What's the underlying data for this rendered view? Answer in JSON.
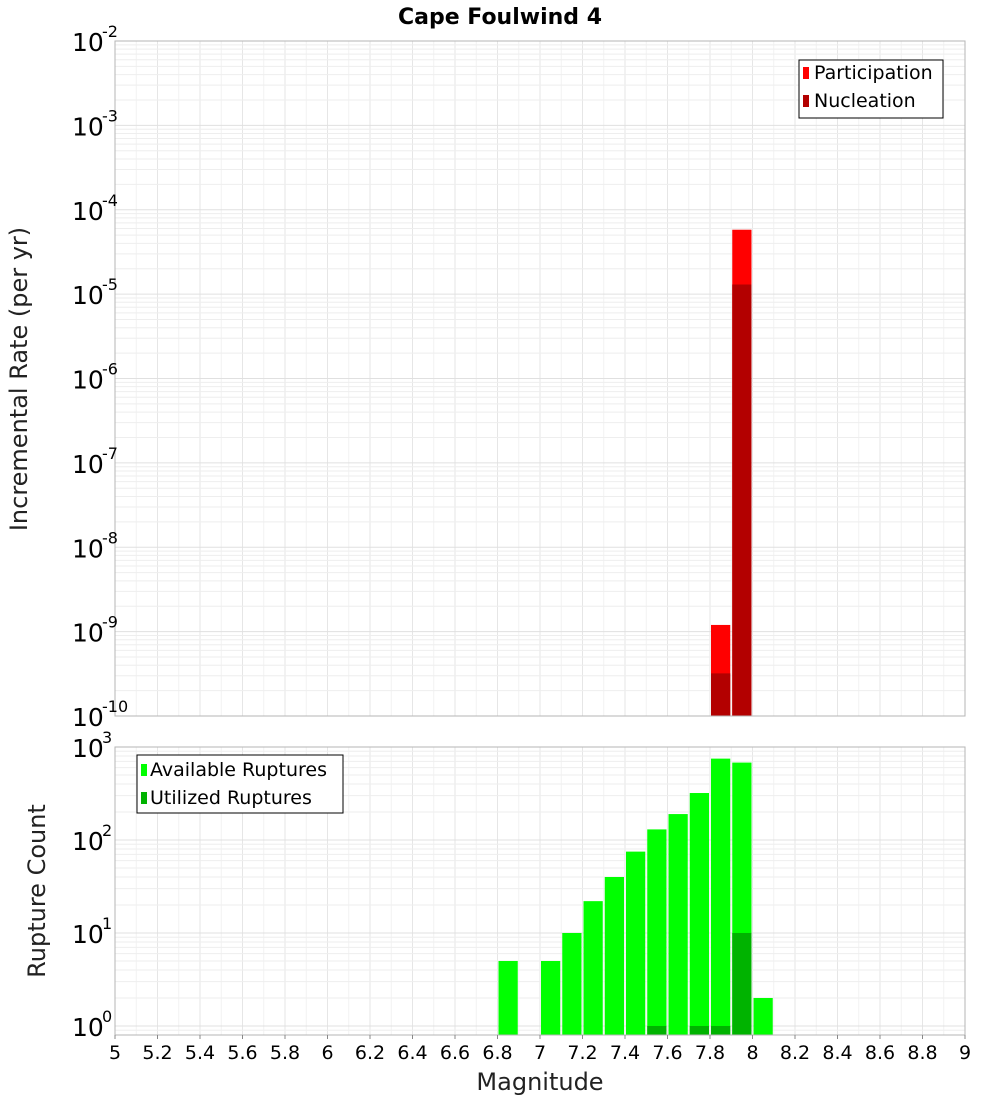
{
  "chart_data": [
    {
      "type": "bar",
      "title": "Cape Foulwind 4",
      "xlabel": "",
      "ylabel": "Incremental Rate (per yr)",
      "yscale": "log",
      "ylim": [
        1e-10,
        0.01
      ],
      "xlim": [
        5,
        9
      ],
      "yticks": [
        {
          "base": "10",
          "exp": "-10",
          "value": 1e-10
        },
        {
          "base": "10",
          "exp": "-9",
          "value": 1e-09
        },
        {
          "base": "10",
          "exp": "-8",
          "value": 1e-08
        },
        {
          "base": "10",
          "exp": "-7",
          "value": 1e-07
        },
        {
          "base": "10",
          "exp": "-6",
          "value": 1e-06
        },
        {
          "base": "10",
          "exp": "-5",
          "value": 1e-05
        },
        {
          "base": "10",
          "exp": "-4",
          "value": 0.0001
        },
        {
          "base": "10",
          "exp": "-3",
          "value": 0.001
        },
        {
          "base": "10",
          "exp": "-2",
          "value": 0.01
        }
      ],
      "legend_position": "top-right",
      "series": [
        {
          "name": "Participation",
          "color": "#ff0000",
          "points": [
            {
              "x": 7.85,
              "y": 1.2e-09
            },
            {
              "x": 7.95,
              "y": 5.8e-05
            }
          ]
        },
        {
          "name": "Nucleation",
          "color": "#b30000",
          "points": [
            {
              "x": 7.85,
              "y": 3.2e-10
            },
            {
              "x": 7.95,
              "y": 1.3e-05
            }
          ]
        }
      ]
    },
    {
      "type": "bar",
      "title": "",
      "xlabel": "Magnitude",
      "ylabel": "Rupture Count",
      "yscale": "log",
      "ylim": [
        0.8,
        1000
      ],
      "xlim": [
        5,
        9
      ],
      "yticks": [
        {
          "base": "10",
          "exp": "0",
          "value": 1
        },
        {
          "base": "10",
          "exp": "1",
          "value": 10
        },
        {
          "base": "10",
          "exp": "2",
          "value": 100
        },
        {
          "base": "10",
          "exp": "3",
          "value": 1000
        }
      ],
      "xticks": [
        "5",
        "5.2",
        "5.4",
        "5.6",
        "5.8",
        "6",
        "6.2",
        "6.4",
        "6.6",
        "6.8",
        "7",
        "7.2",
        "7.4",
        "7.6",
        "7.8",
        "8",
        "8.2",
        "8.4",
        "8.6",
        "8.8",
        "9"
      ],
      "legend_position": "top-left",
      "series": [
        {
          "name": "Available Ruptures",
          "color": "#00ff00",
          "points": [
            {
              "x": 6.85,
              "y": 5
            },
            {
              "x": 7.05,
              "y": 5
            },
            {
              "x": 7.15,
              "y": 10
            },
            {
              "x": 7.25,
              "y": 22
            },
            {
              "x": 7.35,
              "y": 40
            },
            {
              "x": 7.45,
              "y": 75
            },
            {
              "x": 7.55,
              "y": 130
            },
            {
              "x": 7.65,
              "y": 190
            },
            {
              "x": 7.75,
              "y": 320
            },
            {
              "x": 7.85,
              "y": 750
            },
            {
              "x": 7.95,
              "y": 680
            },
            {
              "x": 8.05,
              "y": 2
            }
          ]
        },
        {
          "name": "Utilized Ruptures",
          "color": "#00b300",
          "points": [
            {
              "x": 7.55,
              "y": 1
            },
            {
              "x": 7.75,
              "y": 1
            },
            {
              "x": 7.85,
              "y": 1
            },
            {
              "x": 7.95,
              "y": 10
            }
          ]
        }
      ]
    }
  ]
}
